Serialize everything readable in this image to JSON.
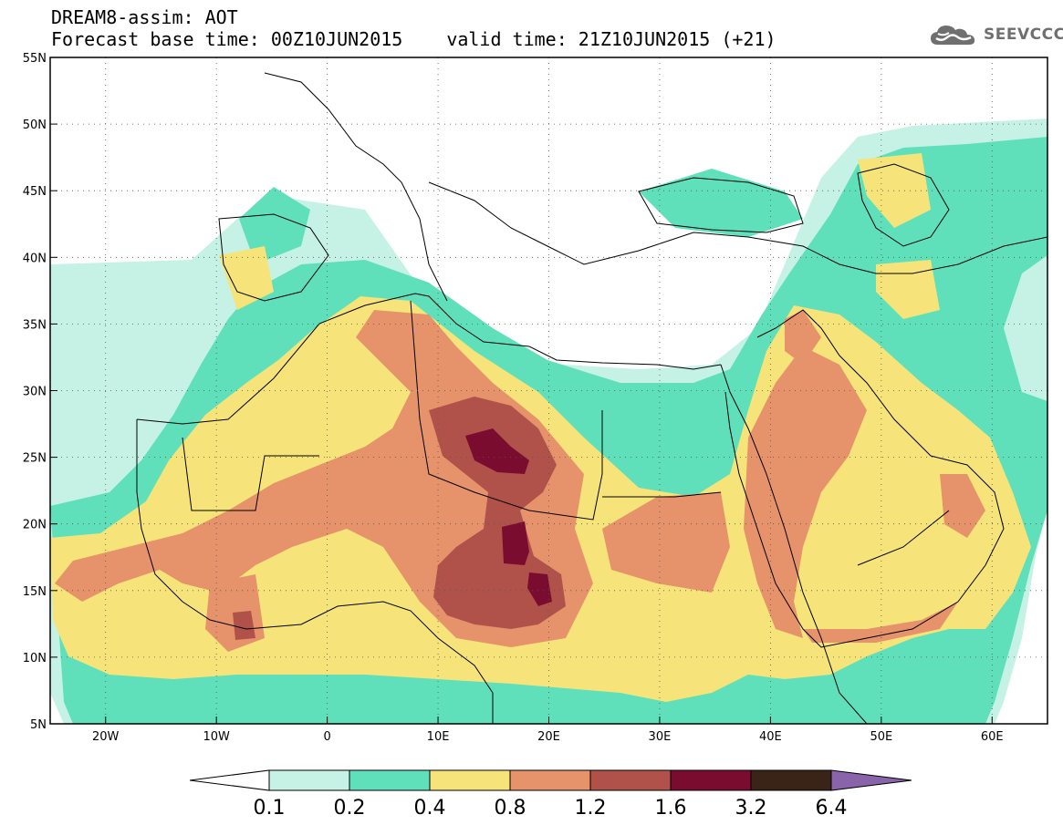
{
  "header": {
    "line1": "DREAM8-assim: AOT",
    "base_time": "Forecast base time: 00Z10JUN2015",
    "valid_time": "valid time: 21Z10JUN2015 (+21)"
  },
  "logo": {
    "text": "SEEVCCC",
    "icon": "cloud-icon",
    "color": "#6f6f6f"
  },
  "map": {
    "lon_range": [
      -25,
      65
    ],
    "lat_range": [
      5,
      55
    ],
    "lon_ticks": [
      {
        "value": -20,
        "label": "20W"
      },
      {
        "value": -10,
        "label": "10W"
      },
      {
        "value": 0,
        "label": "0"
      },
      {
        "value": 10,
        "label": "10E"
      },
      {
        "value": 20,
        "label": "20E"
      },
      {
        "value": 30,
        "label": "30E"
      },
      {
        "value": 40,
        "label": "40E"
      },
      {
        "value": 50,
        "label": "50E"
      },
      {
        "value": 60,
        "label": "60E"
      }
    ],
    "lat_ticks": [
      {
        "value": 5,
        "label": "5N"
      },
      {
        "value": 10,
        "label": "10N"
      },
      {
        "value": 15,
        "label": "15N"
      },
      {
        "value": 20,
        "label": "20N"
      },
      {
        "value": 25,
        "label": "25N"
      },
      {
        "value": 30,
        "label": "30N"
      },
      {
        "value": 35,
        "label": "35N"
      },
      {
        "value": 40,
        "label": "40N"
      },
      {
        "value": 45,
        "label": "45N"
      },
      {
        "value": 50,
        "label": "50N"
      },
      {
        "value": 55,
        "label": "55N"
      }
    ]
  },
  "colorbar": {
    "levels": [
      "0.1",
      "0.2",
      "0.4",
      "0.8",
      "1.2",
      "1.6",
      "3.2",
      "6.4"
    ],
    "colors": [
      "#c6f2e6",
      "#5fe0bb",
      "#f6e47a",
      "#e6926a",
      "#b0524a",
      "#7a0c30",
      "#3a2418",
      "#8a64aa"
    ],
    "under_color": "#ffffff"
  }
}
